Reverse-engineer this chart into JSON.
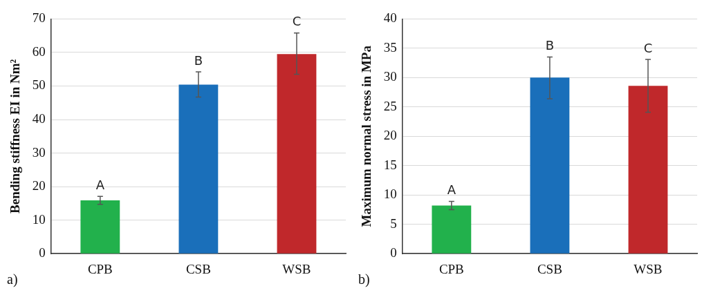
{
  "chart_data": [
    {
      "type": "bar",
      "ylabel": "Bending stiffness EI in Nm²",
      "categories": [
        "CPB",
        "CSB",
        "WSB"
      ],
      "values": [
        15.9,
        50.4,
        59.5
      ],
      "colors": [
        "#22b14c",
        "#1a6fba",
        "#c0282b"
      ],
      "errors": [
        [
          14.7,
          17.1
        ],
        [
          46.7,
          54.2
        ],
        [
          53.5,
          65.8
        ]
      ],
      "ylim": [
        0,
        70
      ],
      "yticks": [
        0,
        10,
        20,
        30,
        40,
        50,
        60,
        70
      ],
      "grid": "y",
      "annotations": [
        {
          "text": "A",
          "x": "CPB",
          "y": 17.1
        },
        {
          "text": "B",
          "x": "CSB",
          "y": 54.2
        },
        {
          "text": "C",
          "x": "WSB",
          "y": 65.8
        },
        "a)"
      ]
    },
    {
      "type": "bar",
      "ylabel": "Maximum normal stress in MPa",
      "categories": [
        "CPB",
        "CSB",
        "WSB"
      ],
      "values": [
        8.2,
        30.0,
        28.6
      ],
      "colors": [
        "#22b14c",
        "#1a6fba",
        "#c0282b"
      ],
      "errors": [
        [
          7.5,
          8.9
        ],
        [
          26.4,
          33.5
        ],
        [
          24.1,
          33.1
        ]
      ],
      "ylim": [
        0,
        40
      ],
      "yticks": [
        0,
        5,
        10,
        15,
        20,
        25,
        30,
        35,
        40
      ],
      "grid": "y",
      "annotations": [
        {
          "text": "A",
          "x": "CPB",
          "y": 8.9
        },
        {
          "text": "B",
          "x": "CSB",
          "y": 33.5
        },
        {
          "text": "C",
          "x": "WSB",
          "y": 33.1
        },
        "b)"
      ]
    }
  ]
}
